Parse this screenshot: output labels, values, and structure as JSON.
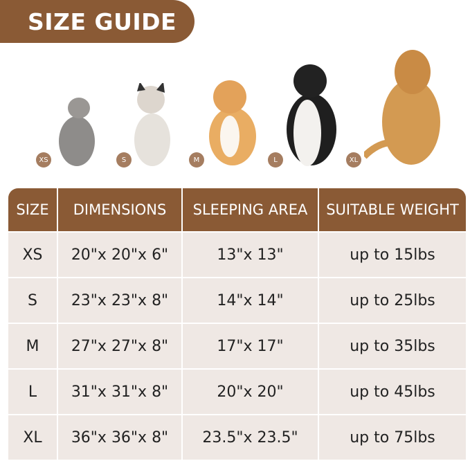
{
  "title": "SIZE GUIDE",
  "pets": [
    {
      "badge": "XS",
      "animal": "cat"
    },
    {
      "badge": "S",
      "animal": "french-bulldog"
    },
    {
      "badge": "M",
      "animal": "corgi"
    },
    {
      "badge": "L",
      "animal": "border-collie"
    },
    {
      "badge": "XL",
      "animal": "golden-retriever"
    }
  ],
  "table": {
    "headers": [
      "SIZE",
      "DIMENSIONS",
      "SLEEPING AREA",
      "SUITABLE WEIGHT"
    ],
    "rows": [
      [
        "XS",
        "20\"x 20\"x 6\"",
        "13\"x 13\"",
        "up to 15lbs"
      ],
      [
        "S",
        "23\"x 23\"x 8\"",
        "14\"x 14\"",
        "up to 25lbs"
      ],
      [
        "M",
        "27\"x 27\"x 8\"",
        "17\"x 17\"",
        "up to 35lbs"
      ],
      [
        "L",
        "31\"x 31\"x 8\"",
        "20\"x 20\"",
        "up to 45lbs"
      ],
      [
        "XL",
        "36\"x 36\"x 8\"",
        "23.5\"x 23.5\"",
        "up to 75lbs"
      ]
    ]
  },
  "colors": {
    "header": "#8a5a35",
    "cell": "#efe8e4",
    "badge": "#a57d60"
  }
}
